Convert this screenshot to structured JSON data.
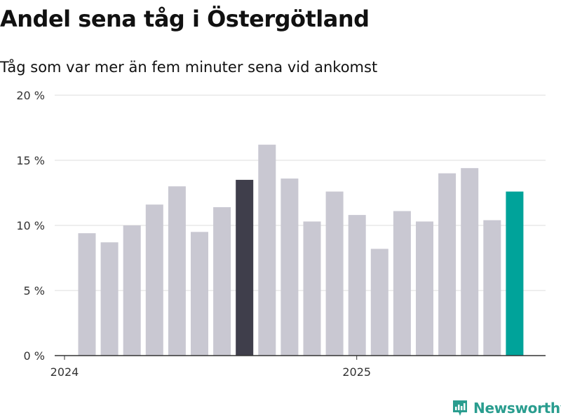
{
  "title": "Andel sena tåg i Östergötland",
  "subtitle": "Tåg som var mer än fem minuter sena vid ankomst",
  "brand": {
    "name": "Newsworthy"
  },
  "colors": {
    "bar_default": "#c9c8d2",
    "bar_marked": "#3f3e4b",
    "bar_latest": "#00a39a",
    "grid": "#dcdcdc",
    "axis": "#333333",
    "brand": "#2a9d8f"
  },
  "chart_data": {
    "type": "bar",
    "title": "Andel sena tåg i Östergötland",
    "subtitle": "Tåg som var mer än fem minuter sena vid ankomst",
    "xlabel": "",
    "ylabel": "",
    "ylim": [
      0,
      20
    ],
    "y_ticks": [
      0,
      5,
      10,
      15,
      20
    ],
    "y_tick_labels": [
      "0 %",
      "5 %",
      "10 %",
      "15 %",
      "20 %"
    ],
    "grid": true,
    "x_tick_labels": [
      {
        "label": "2024",
        "index": 0
      },
      {
        "label": "2025",
        "index": 12
      }
    ],
    "categories": [
      "2024-01",
      "2024-02",
      "2024-03",
      "2024-04",
      "2024-05",
      "2024-06",
      "2024-07",
      "2024-08",
      "2024-09",
      "2024-10",
      "2024-11",
      "2024-12",
      "2025-01",
      "2025-02",
      "2025-03",
      "2025-04",
      "2025-05",
      "2025-06",
      "2025-07",
      "2025-08"
    ],
    "values": [
      9.4,
      8.7,
      10.0,
      11.6,
      13.0,
      9.5,
      11.4,
      13.5,
      16.2,
      13.6,
      10.3,
      12.6,
      10.8,
      8.2,
      11.1,
      10.3,
      14.0,
      14.4,
      10.4,
      12.6
    ],
    "highlights": {
      "7": "marked",
      "19": "latest"
    }
  }
}
